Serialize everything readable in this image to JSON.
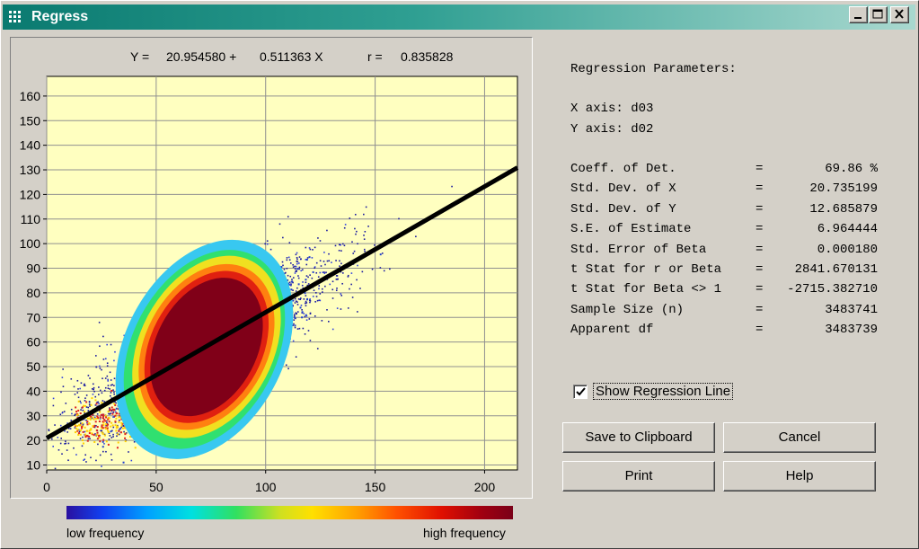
{
  "window": {
    "title": "Regress"
  },
  "equation": {
    "y_label": "Y =",
    "intercept": "20.954580 +",
    "slope": "0.511363 X",
    "r_label": "r =",
    "r_value": "0.835828"
  },
  "parameters": {
    "heading": "Regression Parameters:",
    "x_axis": "X axis: d03",
    "y_axis": "Y axis: d02",
    "rows": [
      {
        "label": "Coeff. of Det.",
        "value": "69.86 %"
      },
      {
        "label": "Std. Dev. of X",
        "value": "20.735199"
      },
      {
        "label": "Std. Dev. of Y",
        "value": "12.685879"
      },
      {
        "label": "S.E. of Estimate",
        "value": "6.964444"
      },
      {
        "label": "Std. Error of Beta",
        "value": "0.000180"
      },
      {
        "label": "t Stat for r or Beta",
        "value": "2841.670131"
      },
      {
        "label": "t Stat for Beta <> 1",
        "value": "-2715.382710"
      },
      {
        "label": "Sample Size (n)",
        "value": "3483741"
      },
      {
        "label": "Apparent df",
        "value": "3483739"
      }
    ]
  },
  "checkbox": {
    "label": "Show Regression Line",
    "checked": true
  },
  "buttons": {
    "save": "Save to Clipboard",
    "cancel": "Cancel",
    "print": "Print",
    "help": "Help"
  },
  "colorbar": {
    "low_label": "low frequency",
    "high_label": "high frequency"
  },
  "chart_data": {
    "type": "scatter",
    "subtype": "density-scatter",
    "xlim": [
      0,
      215
    ],
    "ylim": [
      8,
      168
    ],
    "x_ticks": [
      0,
      50,
      100,
      150,
      200
    ],
    "y_ticks": [
      10,
      20,
      30,
      40,
      50,
      60,
      70,
      80,
      90,
      100,
      110,
      120,
      130,
      140,
      150,
      160
    ],
    "regression": {
      "intercept": 20.95458,
      "slope": 0.511363,
      "r": 0.835828
    },
    "grid": true,
    "background": "#ffffc0",
    "line_color": "#000000"
  },
  "colors": {
    "title_bar": "#0a7a70",
    "plot_bg": "#ffffc0",
    "density_high": "#7a0018",
    "density_low": "#1a1aa0"
  }
}
